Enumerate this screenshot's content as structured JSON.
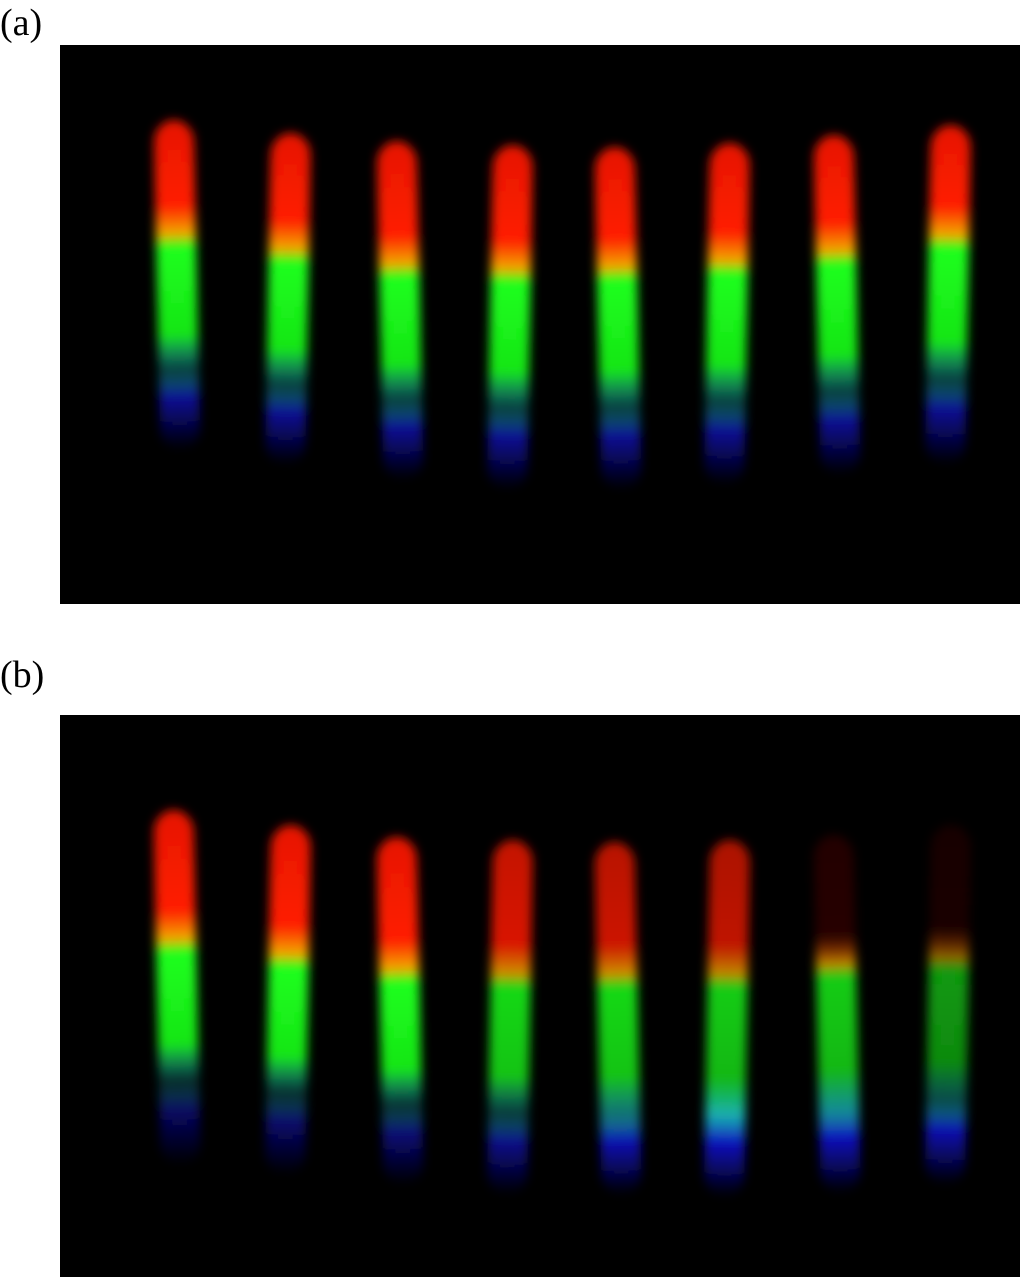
{
  "figure": {
    "panels": [
      {
        "label": "(a)",
        "background": "#000000",
        "strips": [
          {
            "red": 1.0,
            "green": 1.0,
            "blue": 0.75,
            "cyan": 0.0
          },
          {
            "red": 1.0,
            "green": 1.0,
            "blue": 0.75,
            "cyan": 0.0
          },
          {
            "red": 1.0,
            "green": 1.0,
            "blue": 0.75,
            "cyan": 0.0
          },
          {
            "red": 1.0,
            "green": 1.0,
            "blue": 0.75,
            "cyan": 0.0
          },
          {
            "red": 1.0,
            "green": 1.0,
            "blue": 0.75,
            "cyan": 0.0
          },
          {
            "red": 1.0,
            "green": 1.0,
            "blue": 0.75,
            "cyan": 0.0
          },
          {
            "red": 1.0,
            "green": 1.0,
            "blue": 0.75,
            "cyan": 0.0
          },
          {
            "red": 1.0,
            "green": 1.0,
            "blue": 0.75,
            "cyan": 0.0
          }
        ]
      },
      {
        "label": "(b)",
        "background": "#000000",
        "strips": [
          {
            "red": 1.0,
            "green": 1.0,
            "blue": 0.5,
            "cyan": 0.0
          },
          {
            "red": 1.0,
            "green": 1.0,
            "blue": 0.55,
            "cyan": 0.0
          },
          {
            "red": 1.0,
            "green": 1.0,
            "blue": 0.6,
            "cyan": 0.1
          },
          {
            "red": 0.85,
            "green": 0.85,
            "blue": 0.7,
            "cyan": 0.2
          },
          {
            "red": 0.8,
            "green": 0.85,
            "blue": 0.9,
            "cyan": 0.55
          },
          {
            "red": 0.75,
            "green": 0.8,
            "blue": 0.95,
            "cyan": 0.8
          },
          {
            "red": 0.15,
            "green": 0.8,
            "blue": 0.95,
            "cyan": 0.65
          },
          {
            "red": 0.1,
            "green": 0.6,
            "blue": 0.9,
            "cyan": 0.3
          }
        ]
      }
    ]
  },
  "colors": {
    "red": "#ff1a00",
    "orange": "#ffb000",
    "green": "#1aff1a",
    "cyan": "#20e6e6",
    "blue": "#1010c8"
  }
}
